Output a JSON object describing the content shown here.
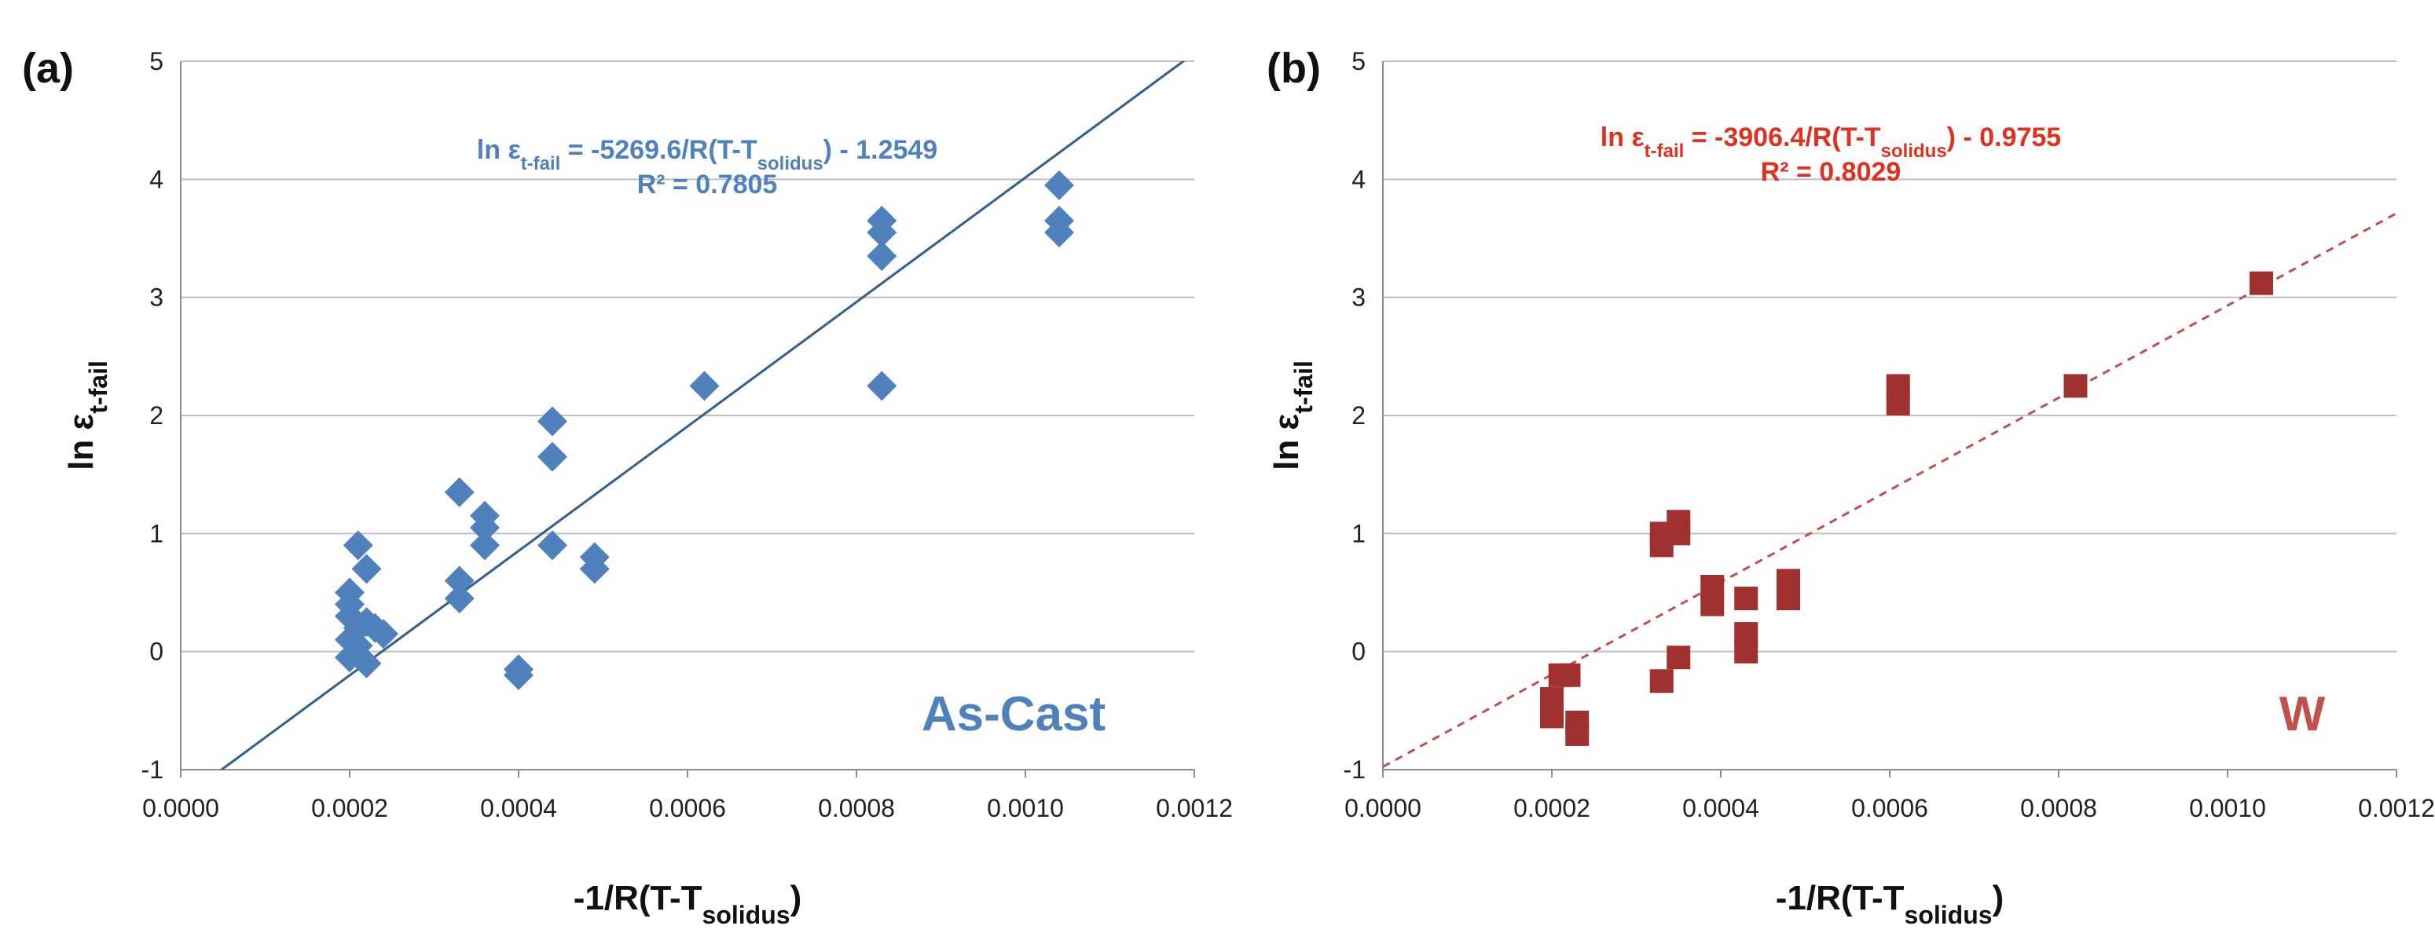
{
  "chart_data": [
    {
      "type": "scatter",
      "panel_label": "(a)",
      "condition_label": "As-Cast",
      "xlabel": "-1/R(T-T",
      "xlabel_sub": "solidus",
      "xlabel_end": ")",
      "ylabel": "ln ε",
      "ylabel_sub": "t-fail",
      "xlim": [
        0.0,
        0.0012
      ],
      "ylim": [
        -1,
        5
      ],
      "x_ticks": [
        "0.0000",
        "0.0002",
        "0.0004",
        "0.0006",
        "0.0008",
        "0.0010",
        "0.0012"
      ],
      "y_ticks": [
        "-1",
        "0",
        "1",
        "2",
        "3",
        "4",
        "5"
      ],
      "grid": "horizontal",
      "marker": "diamond",
      "color": "#4f81bd",
      "trendline": {
        "slope": 5269.6,
        "intercept": -1.2549,
        "style": "solid",
        "color": "#2f5f8a"
      },
      "equation": {
        "prefix": "ln ε",
        "sub": "t-fail",
        "mid": " = -5269.6/R(T-T",
        "sub2": "solidus",
        "suffix": ") - 1.2549",
        "r2": "R² = 0.7805"
      },
      "points": [
        [
          0.0002,
          0.5
        ],
        [
          0.0002,
          0.4
        ],
        [
          0.0002,
          0.3
        ],
        [
          0.0002,
          0.1
        ],
        [
          0.0002,
          -0.05
        ],
        [
          0.00021,
          0.9
        ],
        [
          0.00021,
          0.2
        ],
        [
          0.00021,
          0.05
        ],
        [
          0.00022,
          0.7
        ],
        [
          0.00022,
          0.25
        ],
        [
          0.00022,
          -0.1
        ],
        [
          0.00023,
          0.2
        ],
        [
          0.00024,
          0.15
        ],
        [
          0.00033,
          1.35
        ],
        [
          0.00033,
          0.6
        ],
        [
          0.00033,
          0.45
        ],
        [
          0.00036,
          1.15
        ],
        [
          0.00036,
          1.05
        ],
        [
          0.00036,
          0.9
        ],
        [
          0.0004,
          -0.15
        ],
        [
          0.0004,
          -0.2
        ],
        [
          0.00044,
          1.95
        ],
        [
          0.00044,
          1.65
        ],
        [
          0.00044,
          0.9
        ],
        [
          0.00049,
          0.8
        ],
        [
          0.00049,
          0.7
        ],
        [
          0.00062,
          2.25
        ],
        [
          0.00083,
          3.65
        ],
        [
          0.00083,
          3.55
        ],
        [
          0.00083,
          3.35
        ],
        [
          0.00083,
          2.25
        ],
        [
          0.00104,
          3.95
        ],
        [
          0.00104,
          3.65
        ],
        [
          0.00104,
          3.55
        ]
      ]
    },
    {
      "type": "scatter",
      "panel_label": "(b)",
      "condition_label": "W",
      "xlabel": "-1/R(T-T",
      "xlabel_sub": "solidus",
      "xlabel_end": ")",
      "ylabel": "ln ε",
      "ylabel_sub": "t-fail",
      "xlim": [
        0.0,
        0.0012
      ],
      "ylim": [
        -1,
        5
      ],
      "x_ticks": [
        "0.0000",
        "0.0002",
        "0.0004",
        "0.0006",
        "0.0008",
        "0.0010",
        "0.0012"
      ],
      "y_ticks": [
        "-1",
        "0",
        "1",
        "2",
        "3",
        "4",
        "5"
      ],
      "grid": "horizontal",
      "marker": "square",
      "color": "#a0312e",
      "trendline": {
        "slope": 3906.4,
        "intercept": -0.9755,
        "style": "dashed",
        "color": "#c0504d"
      },
      "equation": {
        "prefix": "ln ε",
        "sub": "t-fail",
        "mid": " = -3906.4/R(T-T",
        "sub2": "solidus",
        "suffix": ") - 0.9755",
        "r2": "R² = 0.8029"
      },
      "points": [
        [
          0.0002,
          -0.4
        ],
        [
          0.0002,
          -0.55
        ],
        [
          0.00021,
          -0.2
        ],
        [
          0.00022,
          -0.2
        ],
        [
          0.00023,
          -0.6
        ],
        [
          0.00023,
          -0.7
        ],
        [
          0.00033,
          1.0
        ],
        [
          0.00033,
          0.9
        ],
        [
          0.00033,
          -0.25
        ],
        [
          0.00035,
          1.1
        ],
        [
          0.00035,
          1.0
        ],
        [
          0.00035,
          -0.05
        ],
        [
          0.00039,
          0.55
        ],
        [
          0.00039,
          0.4
        ],
        [
          0.00043,
          0.45
        ],
        [
          0.00043,
          0.15
        ],
        [
          0.00043,
          0.0
        ],
        [
          0.00048,
          0.6
        ],
        [
          0.00048,
          0.45
        ],
        [
          0.00061,
          2.25
        ],
        [
          0.00061,
          2.1
        ],
        [
          0.00082,
          2.25
        ],
        [
          0.00104,
          3.12
        ]
      ]
    }
  ]
}
